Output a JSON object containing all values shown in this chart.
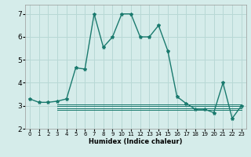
{
  "xlabel": "Humidex (Indice chaleur)",
  "bg_color": "#d5ecea",
  "grid_color": "#b8d8d5",
  "line_color": "#1a7a6e",
  "ylim": [
    2,
    7.4
  ],
  "xlim": [
    -0.5,
    23.5
  ],
  "yticks": [
    2,
    3,
    4,
    5,
    6,
    7
  ],
  "xticks": [
    0,
    1,
    2,
    3,
    4,
    5,
    6,
    7,
    8,
    9,
    10,
    11,
    12,
    13,
    14,
    15,
    16,
    17,
    18,
    19,
    20,
    21,
    22,
    23
  ],
  "main_line": {
    "x": [
      0,
      1,
      2,
      3,
      4,
      5,
      6,
      7,
      8,
      9,
      10,
      11,
      12,
      13,
      14,
      15,
      16,
      17,
      18,
      19,
      20,
      21,
      22,
      23
    ],
    "y": [
      3.3,
      3.15,
      3.15,
      3.2,
      3.3,
      4.65,
      4.6,
      7.0,
      5.55,
      6.0,
      7.0,
      7.0,
      6.0,
      6.0,
      6.5,
      5.4,
      3.4,
      3.1,
      2.85,
      2.85,
      2.7,
      4.0,
      2.45,
      3.0
    ]
  },
  "flat_lines": [
    {
      "x": [
        3,
        23
      ],
      "y": [
        2.82,
        2.82
      ]
    },
    {
      "x": [
        3,
        23
      ],
      "y": [
        2.9,
        2.9
      ]
    },
    {
      "x": [
        3,
        23
      ],
      "y": [
        2.98,
        2.98
      ]
    },
    {
      "x": [
        3,
        23
      ],
      "y": [
        3.06,
        3.06
      ]
    }
  ],
  "xlabel_fontsize": 6.0,
  "tick_fontsize_x": 5.0,
  "tick_fontsize_y": 6.5
}
